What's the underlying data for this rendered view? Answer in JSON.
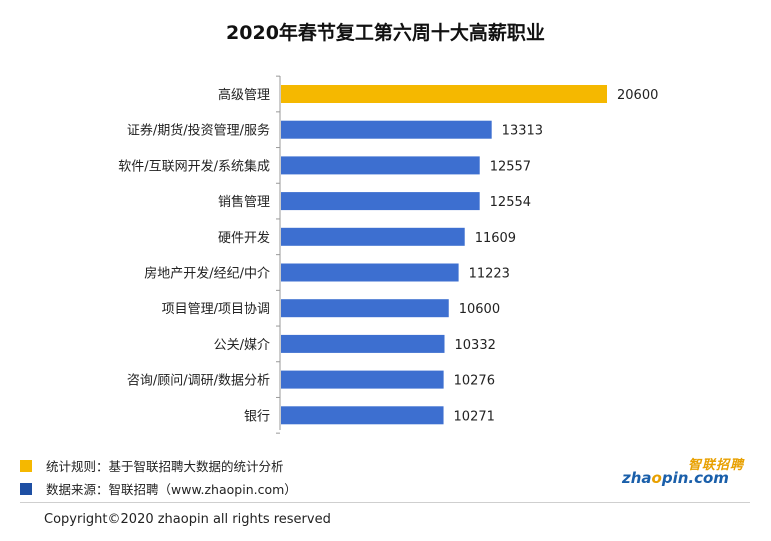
{
  "chart_data": {
    "type": "bar",
    "orientation": "horizontal",
    "title": "2020年春节复工第六周十大高薪职业",
    "categories": [
      "高级管理",
      "证券/期货/投资管理/服务",
      "软件/互联网开发/系统集成",
      "销售管理",
      "硬件开发",
      "房地产开发/经纪/中介",
      "项目管理/项目协调",
      "公关/媒介",
      "咨询/顾问/调研/数据分析",
      "银行"
    ],
    "values": [
      20600,
      13313,
      12557,
      12554,
      11609,
      11223,
      10600,
      10332,
      10276,
      10271
    ],
    "highlight_index": 0,
    "xlim": [
      0,
      20600
    ],
    "grid": false,
    "colors": {
      "highlight": "#f5b800",
      "default": "#3d6fd0",
      "axis": "#999999"
    }
  },
  "legend": {
    "rule": {
      "text": "统计规则：基于智联招聘大数据的统计分析",
      "color": "#f5b800"
    },
    "source": {
      "text": "数据来源：智联招聘（www.zhaopin.com）",
      "color": "#1e4fa3"
    }
  },
  "brand": {
    "cn": "智联招聘",
    "en_pre": "zha",
    "en_mid": "o",
    "en_post": "pin.com"
  },
  "footer": {
    "copyright": "Copyright©2020 zhaopin all rights reserved"
  }
}
